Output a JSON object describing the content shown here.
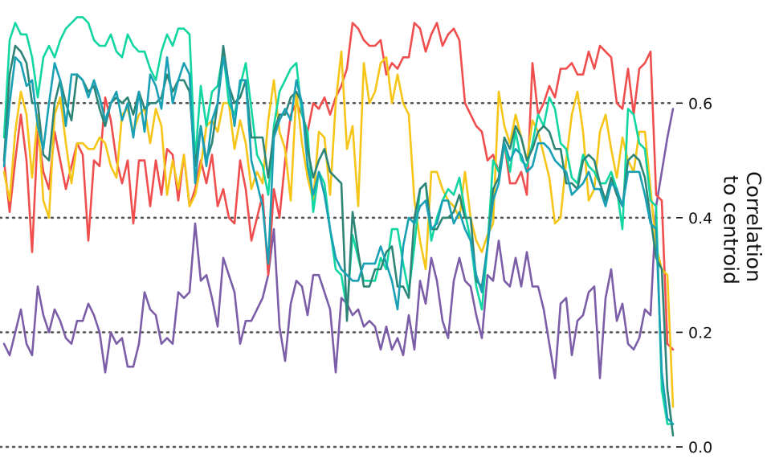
{
  "chart_data": {
    "type": "line",
    "ylabel": "Correlation to centroid",
    "ylabel_lines": [
      "Correlation",
      "to centroid"
    ],
    "yaxis_side": "right",
    "ylim": [
      0.0,
      0.78
    ],
    "yticks": [
      0.0,
      0.2,
      0.4,
      0.6
    ],
    "ytick_labels": [
      "0.0",
      "0.2",
      "0.4",
      "0.6"
    ],
    "grid": "horizontal-dotted",
    "legend": "none",
    "x": [
      0,
      1,
      2,
      3,
      4,
      5,
      6,
      7,
      8,
      9,
      10,
      11,
      12,
      13,
      14,
      15,
      16,
      17,
      18,
      19,
      20,
      21,
      22,
      23,
      24,
      25,
      26,
      27,
      28,
      29,
      30,
      31,
      32,
      33,
      34,
      35,
      36,
      37,
      38,
      39,
      40,
      41,
      42,
      43,
      44,
      45,
      46,
      47,
      48,
      49,
      50,
      51,
      52,
      53,
      54,
      55,
      56,
      57,
      58,
      59,
      60,
      61,
      62,
      63,
      64,
      65,
      66,
      67,
      68,
      69,
      70,
      71,
      72,
      73,
      74,
      75,
      76,
      77,
      78,
      79,
      80,
      81,
      82,
      83,
      84,
      85,
      86,
      87,
      88,
      89,
      90,
      91,
      92,
      93,
      94,
      95,
      96,
      97,
      98,
      99,
      100,
      101,
      102,
      103,
      104,
      105,
      106,
      107,
      108,
      109,
      110,
      111,
      112,
      113,
      114,
      115,
      116,
      117,
      118,
      119
    ],
    "series": [
      {
        "color": "#7b5ea7",
        "values": [
          0.18,
          0.16,
          0.2,
          0.24,
          0.18,
          0.16,
          0.28,
          0.23,
          0.2,
          0.24,
          0.22,
          0.19,
          0.18,
          0.22,
          0.22,
          0.25,
          0.23,
          0.2,
          0.13,
          0.2,
          0.18,
          0.19,
          0.14,
          0.14,
          0.18,
          0.27,
          0.24,
          0.23,
          0.18,
          0.19,
          0.18,
          0.27,
          0.26,
          0.27,
          0.39,
          0.29,
          0.3,
          0.26,
          0.21,
          0.33,
          0.3,
          0.27,
          0.18,
          0.22,
          0.22,
          0.24,
          0.26,
          0.3,
          0.38,
          0.21,
          0.15,
          0.25,
          0.29,
          0.28,
          0.23,
          0.3,
          0.3,
          0.27,
          0.24,
          0.13,
          0.26,
          0.25,
          0.23,
          0.24,
          0.21,
          0.22,
          0.21,
          0.17,
          0.21,
          0.17,
          0.19,
          0.16,
          0.23,
          0.17,
          0.29,
          0.25,
          0.33,
          0.29,
          0.22,
          0.19,
          0.29,
          0.33,
          0.29,
          0.28,
          0.23,
          0.19,
          0.3,
          0.29,
          0.36,
          0.29,
          0.28,
          0.33,
          0.28,
          0.34,
          0.28,
          0.28,
          0.24,
          0.18,
          0.12,
          0.25,
          0.26,
          0.16,
          0.22,
          0.23,
          0.27,
          0.28,
          0.12,
          0.26,
          0.31,
          0.22,
          0.25,
          0.18,
          0.17,
          0.19,
          0.24,
          0.23,
          0.42,
          0.48,
          0.54,
          0.59
        ]
      },
      {
        "color": "#f04e4e",
        "values": [
          0.5,
          0.41,
          0.5,
          0.58,
          0.5,
          0.34,
          0.55,
          0.48,
          0.45,
          0.55,
          0.5,
          0.45,
          0.49,
          0.53,
          0.51,
          0.36,
          0.5,
          0.49,
          0.61,
          0.57,
          0.5,
          0.46,
          0.5,
          0.39,
          0.5,
          0.5,
          0.42,
          0.5,
          0.44,
          0.52,
          0.51,
          0.43,
          0.51,
          0.42,
          0.45,
          0.5,
          0.46,
          0.51,
          0.42,
          0.45,
          0.4,
          0.39,
          0.5,
          0.45,
          0.36,
          0.4,
          0.44,
          0.3,
          0.45,
          0.4,
          0.5,
          0.58,
          0.6,
          0.58,
          0.55,
          0.6,
          0.59,
          0.61,
          0.58,
          0.61,
          0.63,
          0.66,
          0.74,
          0.73,
          0.71,
          0.7,
          0.7,
          0.71,
          0.65,
          0.67,
          0.66,
          0.68,
          0.68,
          0.74,
          0.73,
          0.69,
          0.72,
          0.74,
          0.7,
          0.72,
          0.73,
          0.71,
          0.6,
          0.58,
          0.56,
          0.55,
          0.5,
          0.51,
          0.48,
          0.53,
          0.46,
          0.46,
          0.48,
          0.44,
          0.67,
          0.58,
          0.6,
          0.63,
          0.61,
          0.66,
          0.66,
          0.67,
          0.65,
          0.65,
          0.69,
          0.66,
          0.7,
          0.69,
          0.68,
          0.6,
          0.59,
          0.66,
          0.58,
          0.66,
          0.67,
          0.69,
          0.44,
          0.43,
          0.18,
          0.17
        ]
      },
      {
        "color": "#f5c518",
        "values": [
          0.48,
          0.43,
          0.55,
          0.62,
          0.58,
          0.47,
          0.58,
          0.43,
          0.4,
          0.58,
          0.61,
          0.53,
          0.46,
          0.53,
          0.53,
          0.52,
          0.52,
          0.54,
          0.53,
          0.49,
          0.47,
          0.58,
          0.59,
          0.55,
          0.58,
          0.59,
          0.53,
          0.59,
          0.56,
          0.44,
          0.5,
          0.45,
          0.51,
          0.42,
          0.44,
          0.49,
          0.56,
          0.57,
          0.55,
          0.6,
          0.6,
          0.52,
          0.57,
          0.53,
          0.45,
          0.48,
          0.46,
          0.57,
          0.64,
          0.55,
          0.52,
          0.43,
          0.62,
          0.53,
          0.47,
          0.43,
          0.55,
          0.54,
          0.44,
          0.6,
          0.69,
          0.52,
          0.56,
          0.42,
          0.67,
          0.6,
          0.62,
          0.67,
          0.68,
          0.6,
          0.65,
          0.6,
          0.58,
          0.43,
          0.36,
          0.31,
          0.48,
          0.48,
          0.45,
          0.43,
          0.42,
          0.4,
          0.48,
          0.4,
          0.36,
          0.34,
          0.37,
          0.39,
          0.62,
          0.56,
          0.53,
          0.58,
          0.54,
          0.5,
          0.57,
          0.55,
          0.51,
          0.47,
          0.39,
          0.4,
          0.5,
          0.58,
          0.62,
          0.55,
          0.43,
          0.45,
          0.55,
          0.58,
          0.52,
          0.47,
          0.54,
          0.5,
          0.48,
          0.55,
          0.55,
          0.45,
          0.35,
          0.31,
          0.3,
          0.07
        ]
      },
      {
        "color": "#12d6a2",
        "values": [
          0.54,
          0.71,
          0.74,
          0.72,
          0.72,
          0.68,
          0.61,
          0.68,
          0.7,
          0.68,
          0.71,
          0.73,
          0.74,
          0.75,
          0.75,
          0.74,
          0.71,
          0.7,
          0.7,
          0.72,
          0.69,
          0.68,
          0.72,
          0.7,
          0.69,
          0.69,
          0.66,
          0.64,
          0.69,
          0.72,
          0.7,
          0.73,
          0.73,
          0.72,
          0.5,
          0.63,
          0.56,
          0.62,
          0.63,
          0.69,
          0.6,
          0.58,
          0.63,
          0.67,
          0.59,
          0.51,
          0.49,
          0.44,
          0.56,
          0.62,
          0.64,
          0.66,
          0.67,
          0.58,
          0.55,
          0.41,
          0.48,
          0.46,
          0.38,
          0.31,
          0.3,
          0.24,
          0.37,
          0.33,
          0.29,
          0.29,
          0.29,
          0.33,
          0.31,
          0.38,
          0.38,
          0.32,
          0.27,
          0.35,
          0.45,
          0.46,
          0.36,
          0.4,
          0.43,
          0.45,
          0.44,
          0.47,
          0.41,
          0.36,
          0.28,
          0.24,
          0.35,
          0.5,
          0.48,
          0.53,
          0.48,
          0.55,
          0.5,
          0.49,
          0.53,
          0.58,
          0.56,
          0.61,
          0.59,
          0.53,
          0.52,
          0.47,
          0.46,
          0.51,
          0.49,
          0.48,
          0.46,
          0.46,
          0.48,
          0.45,
          0.38,
          0.59,
          0.58,
          0.53,
          0.52,
          0.43,
          0.42,
          0.1,
          0.04,
          0.04
        ]
      },
      {
        "color": "#2e8577",
        "values": [
          0.5,
          0.65,
          0.7,
          0.69,
          0.67,
          0.6,
          0.6,
          0.51,
          0.5,
          0.6,
          0.64,
          0.6,
          0.57,
          0.65,
          0.64,
          0.62,
          0.63,
          0.59,
          0.56,
          0.6,
          0.61,
          0.6,
          0.61,
          0.58,
          0.62,
          0.59,
          0.6,
          0.6,
          0.61,
          0.65,
          0.62,
          0.64,
          0.64,
          0.62,
          0.49,
          0.56,
          0.5,
          0.53,
          0.6,
          0.7,
          0.63,
          0.6,
          0.61,
          0.64,
          0.54,
          0.54,
          0.54,
          0.47,
          0.55,
          0.58,
          0.58,
          0.61,
          0.62,
          0.6,
          0.52,
          0.47,
          0.5,
          0.52,
          0.48,
          0.47,
          0.46,
          0.22,
          0.41,
          0.34,
          0.28,
          0.28,
          0.31,
          0.31,
          0.34,
          0.35,
          0.28,
          0.28,
          0.26,
          0.4,
          0.45,
          0.46,
          0.38,
          0.38,
          0.4,
          0.4,
          0.41,
          0.44,
          0.4,
          0.4,
          0.29,
          0.28,
          0.35,
          0.45,
          0.47,
          0.54,
          0.52,
          0.56,
          0.54,
          0.5,
          0.52,
          0.55,
          0.56,
          0.55,
          0.52,
          0.52,
          0.46,
          0.46,
          0.45,
          0.5,
          0.51,
          0.5,
          0.46,
          0.43,
          0.47,
          0.44,
          0.42,
          0.5,
          0.51,
          0.5,
          0.47,
          0.4,
          0.33,
          0.31,
          0.1,
          0.02
        ]
      },
      {
        "color": "#1aa0b4",
        "values": [
          0.49,
          0.6,
          0.68,
          0.67,
          0.63,
          0.64,
          0.56,
          0.52,
          0.6,
          0.67,
          0.64,
          0.56,
          0.65,
          0.65,
          0.64,
          0.61,
          0.64,
          0.61,
          0.57,
          0.6,
          0.62,
          0.57,
          0.6,
          0.54,
          0.62,
          0.55,
          0.65,
          0.63,
          0.59,
          0.68,
          0.6,
          0.64,
          0.67,
          0.65,
          0.46,
          0.56,
          0.49,
          0.57,
          0.6,
          0.68,
          0.63,
          0.56,
          0.64,
          0.64,
          0.5,
          0.46,
          0.42,
          0.32,
          0.54,
          0.57,
          0.59,
          0.57,
          0.64,
          0.6,
          0.49,
          0.44,
          0.48,
          0.44,
          0.38,
          0.33,
          0.31,
          0.3,
          0.29,
          0.29,
          0.32,
          0.32,
          0.32,
          0.35,
          0.32,
          0.29,
          0.24,
          0.35,
          0.4,
          0.39,
          0.42,
          0.43,
          0.38,
          0.39,
          0.43,
          0.43,
          0.39,
          0.41,
          0.38,
          0.36,
          0.3,
          0.27,
          0.35,
          0.43,
          0.46,
          0.53,
          0.5,
          0.52,
          0.51,
          0.48,
          0.49,
          0.53,
          0.53,
          0.52,
          0.5,
          0.49,
          0.48,
          0.44,
          0.45,
          0.46,
          0.48,
          0.45,
          0.45,
          0.42,
          0.46,
          0.45,
          0.42,
          0.48,
          0.48,
          0.48,
          0.44,
          0.39,
          0.38,
          0.13,
          0.05,
          0.04
        ]
      }
    ]
  }
}
